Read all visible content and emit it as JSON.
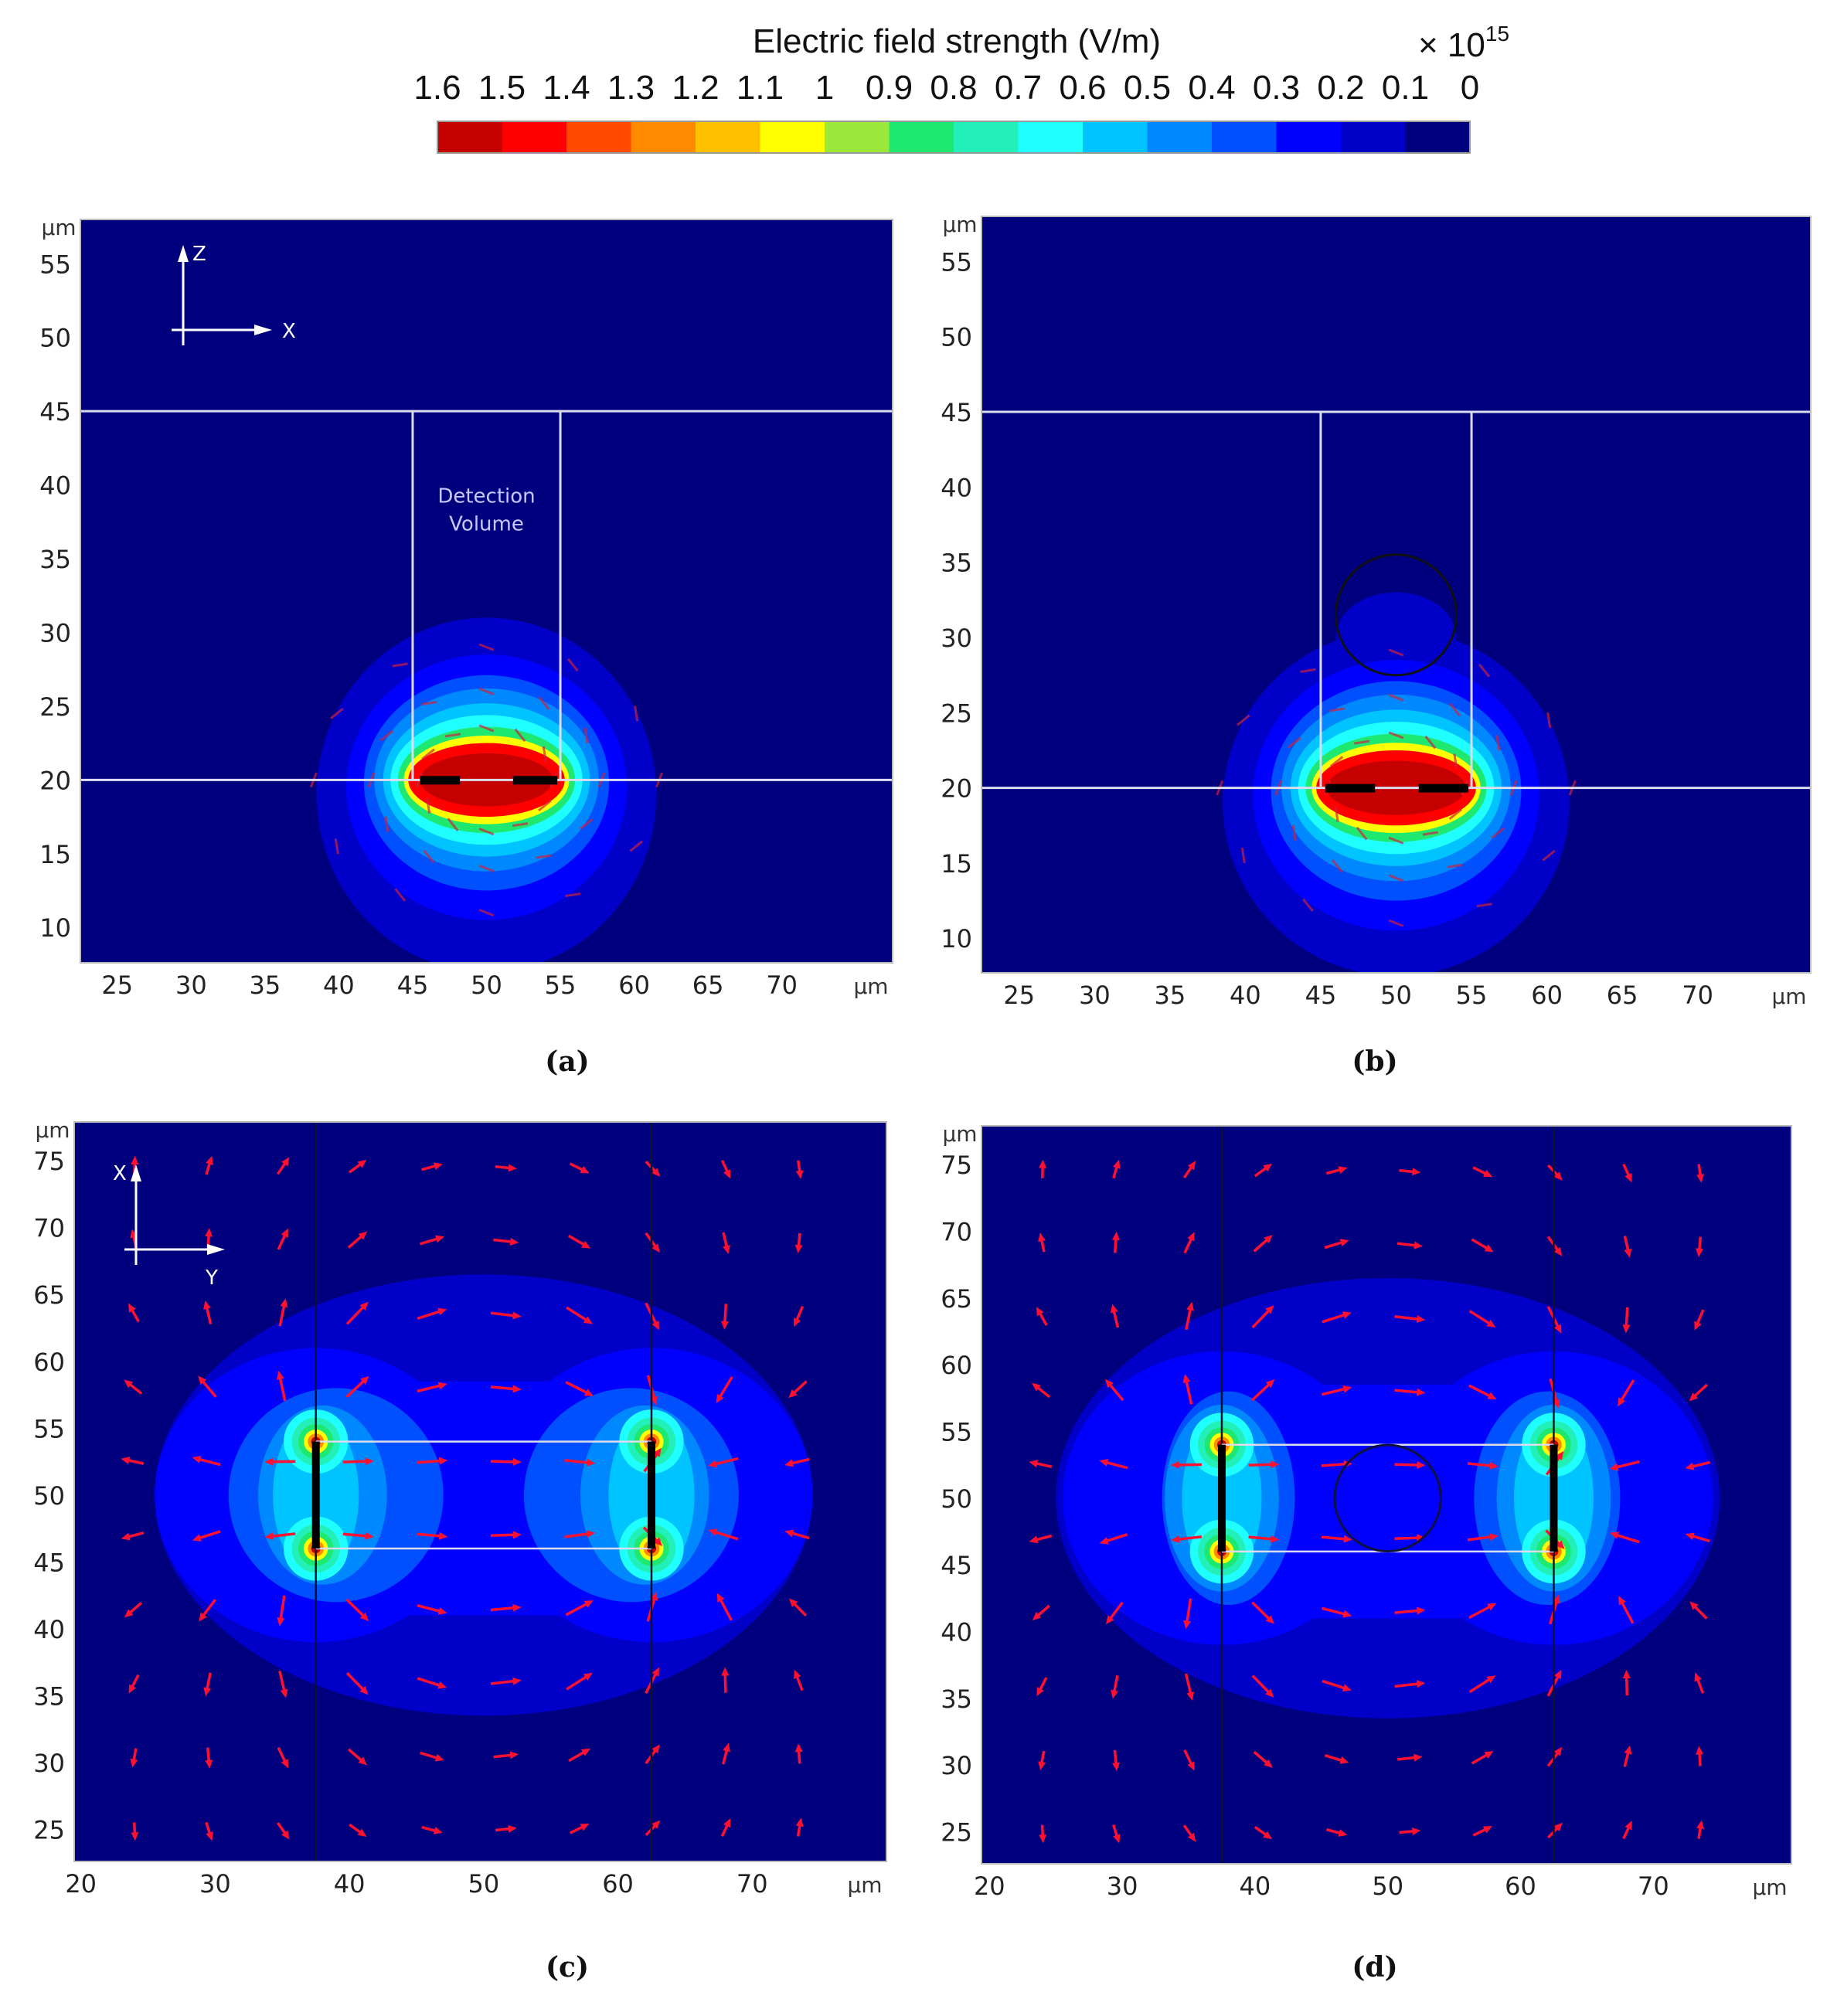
{
  "colorbar": {
    "title": "Electric field strength (V/m)",
    "multiplier": "× 10",
    "exponent": "15",
    "tick_labels": [
      "1.6",
      "1.5",
      "1.4",
      "1.3",
      "1.2",
      "1.1",
      "1",
      "0.9",
      "0.8",
      "0.7",
      "0.6",
      "0.5",
      "0.4",
      "0.3",
      "0.2",
      "0.1",
      "0"
    ],
    "colors": [
      "#c40000",
      "#ff0000",
      "#ff4a00",
      "#ff8a00",
      "#ffc000",
      "#ffff00",
      "#9be83a",
      "#1ee870",
      "#22f0b8",
      "#20ffff",
      "#00c4ff",
      "#0088ff",
      "#0050ff",
      "#0000ff",
      "#0000c8",
      "#00007e"
    ]
  },
  "chart_data": [
    {
      "type": "heatmap",
      "panel": "(a)",
      "xlim": [
        22.5,
        77.5
      ],
      "ylim": [
        7.6,
        58
      ],
      "xticks": [
        25,
        30,
        35,
        40,
        45,
        50,
        55,
        60,
        65,
        70
      ],
      "yticks": [
        10,
        15,
        20,
        25,
        30,
        35,
        40,
        45,
        50,
        55
      ],
      "unit": "µm",
      "axis_h": "X",
      "axis_v": "Z",
      "annotation": [
        "Detection",
        "Volume"
      ],
      "contours": [
        {
          "level": 0.1,
          "shape": "ellipse",
          "cx": 50,
          "cy": 19,
          "rx": 11.5,
          "ry": 12
        },
        {
          "level": 0.2,
          "shape": "ellipse",
          "cx": 50,
          "cy": 19.5,
          "rx": 9.5,
          "ry": 9
        },
        {
          "level": 0.3,
          "shape": "ellipse",
          "cx": 50,
          "cy": 19.8,
          "rx": 8.3,
          "ry": 7.3
        },
        {
          "level": 0.4,
          "shape": "ellipse",
          "cx": 50,
          "cy": 20,
          "rx": 7.6,
          "ry": 6.2
        },
        {
          "level": 0.5,
          "shape": "ellipse",
          "cx": 50,
          "cy": 20,
          "rx": 7,
          "ry": 5.2
        },
        {
          "level": 0.6,
          "shape": "ellipse",
          "cx": 50,
          "cy": 20,
          "rx": 6.5,
          "ry": 4.4
        },
        {
          "level": 0.8,
          "shape": "ellipse",
          "cx": 50,
          "cy": 20,
          "rx": 6,
          "ry": 3.6
        },
        {
          "level": 1.0,
          "shape": "ellipse",
          "cx": 50,
          "cy": 20,
          "rx": 5.6,
          "ry": 3
        },
        {
          "level": 1.4,
          "shape": "ellipse",
          "cx": 50,
          "cy": 20,
          "rx": 5.3,
          "ry": 2.5
        },
        {
          "level": 1.5,
          "shape": "ellipse",
          "cx": 50,
          "cy": 20,
          "rx": 4.5,
          "ry": 1.8
        }
      ]
    },
    {
      "type": "heatmap",
      "panel": "(b)",
      "xlim": [
        22.5,
        77.5
      ],
      "ylim": [
        7.7,
        58
      ],
      "xticks": [
        25,
        30,
        35,
        40,
        45,
        50,
        55,
        60,
        65,
        70
      ],
      "yticks": [
        10,
        15,
        20,
        25,
        30,
        35,
        40,
        45,
        50,
        55
      ],
      "unit": "µm",
      "contours": [
        {
          "level": 0.1,
          "shape": "ellipse",
          "cx": 50,
          "cy": 19,
          "rx": 11.5,
          "ry": 11.5
        },
        {
          "level": 0.1,
          "shape": "ellipse",
          "cx": 50,
          "cy": 30,
          "rx": 4,
          "ry": 3
        },
        {
          "level": 0.2,
          "shape": "ellipse",
          "cx": 50,
          "cy": 19.5,
          "rx": 9.5,
          "ry": 9
        },
        {
          "level": 0.3,
          "shape": "ellipse",
          "cx": 50,
          "cy": 19.8,
          "rx": 8.3,
          "ry": 7.3
        },
        {
          "level": 0.4,
          "shape": "ellipse",
          "cx": 50,
          "cy": 20,
          "rx": 7.6,
          "ry": 6.2
        },
        {
          "level": 0.5,
          "shape": "ellipse",
          "cx": 50,
          "cy": 20,
          "rx": 7,
          "ry": 5.2
        },
        {
          "level": 0.6,
          "shape": "ellipse",
          "cx": 50,
          "cy": 20,
          "rx": 6.5,
          "ry": 4.4
        },
        {
          "level": 0.8,
          "shape": "ellipse",
          "cx": 50,
          "cy": 20,
          "rx": 6,
          "ry": 3.6
        },
        {
          "level": 1.0,
          "shape": "ellipse",
          "cx": 50,
          "cy": 20,
          "rx": 5.6,
          "ry": 3
        },
        {
          "level": 1.4,
          "shape": "ellipse",
          "cx": 50,
          "cy": 20,
          "rx": 5.3,
          "ry": 2.5
        },
        {
          "level": 1.5,
          "shape": "ellipse",
          "cx": 50,
          "cy": 20,
          "rx": 4.6,
          "ry": 1.8
        }
      ]
    },
    {
      "type": "heatmap",
      "panel": "(c)",
      "xlim": [
        19.5,
        80
      ],
      "ylim": [
        22.6,
        77.9
      ],
      "xticks": [
        20,
        30,
        40,
        50,
        60,
        70
      ],
      "yticks": [
        25,
        30,
        35,
        40,
        45,
        50,
        55,
        60,
        65,
        70,
        75
      ],
      "unit": "µm",
      "axis_h": "Y",
      "axis_v": "X",
      "contours": [
        {
          "level": 0.1,
          "shape": "ellipse",
          "cx": 50,
          "cy": 50,
          "rx": 24.5,
          "ry": 16.5
        },
        {
          "level": 0.2,
          "shape": "ellipse",
          "cx": 37.5,
          "cy": 50,
          "rx": 12,
          "ry": 11
        },
        {
          "level": 0.2,
          "shape": "ellipse",
          "cx": 62.5,
          "cy": 50,
          "rx": 12,
          "ry": 11
        },
        {
          "level": 0.2,
          "shape": "rect",
          "x0": 37.5,
          "x1": 62.5,
          "y0": 41,
          "y1": 58.5
        },
        {
          "level": 0.3,
          "shape": "ellipse",
          "cx": 39,
          "cy": 50,
          "rx": 8,
          "ry": 8
        },
        {
          "level": 0.3,
          "shape": "ellipse",
          "cx": 61,
          "cy": 50,
          "rx": 8,
          "ry": 8
        },
        {
          "level": 0.4,
          "shape": "ellipse",
          "cx": 38,
          "cy": 50,
          "rx": 4.8,
          "ry": 6.7
        },
        {
          "level": 0.4,
          "shape": "ellipse",
          "cx": 62,
          "cy": 50,
          "rx": 4.8,
          "ry": 6.7
        },
        {
          "level": 0.5,
          "shape": "ellipse",
          "cx": 37.5,
          "cy": 50,
          "rx": 3.2,
          "ry": 6
        },
        {
          "level": 0.5,
          "shape": "ellipse",
          "cx": 62.5,
          "cy": 50,
          "rx": 3.2,
          "ry": 6
        },
        {
          "level": 0.6,
          "shape": "points",
          "pts": [
            [
              37.5,
              54
            ],
            [
              37.5,
              46
            ],
            [
              62.5,
              54
            ],
            [
              62.5,
              46
            ]
          ],
          "r": 2.4
        },
        {
          "level": 0.7,
          "shape": "points",
          "pts": [
            [
              37.5,
              54
            ],
            [
              37.5,
              46
            ],
            [
              62.5,
              54
            ],
            [
              62.5,
              46
            ]
          ],
          "r": 1.8
        },
        {
          "level": 0.8,
          "shape": "points",
          "pts": [
            [
              37.5,
              54
            ],
            [
              37.5,
              46
            ],
            [
              62.5,
              54
            ],
            [
              62.5,
              46
            ]
          ],
          "r": 1.3
        },
        {
          "level": 1.0,
          "shape": "points",
          "pts": [
            [
              37.5,
              54
            ],
            [
              37.5,
              46
            ],
            [
              62.5,
              54
            ],
            [
              62.5,
              46
            ]
          ],
          "r": 0.9
        },
        {
          "level": 1.2,
          "shape": "points",
          "pts": [
            [
              37.5,
              54
            ],
            [
              37.5,
              46
            ],
            [
              62.5,
              54
            ],
            [
              62.5,
              46
            ]
          ],
          "r": 0.6
        },
        {
          "level": 1.5,
          "shape": "points",
          "pts": [
            [
              37.5,
              54
            ],
            [
              37.5,
              46
            ],
            [
              62.5,
              54
            ],
            [
              62.5,
              46
            ]
          ],
          "r": 0.35
        }
      ]
    },
    {
      "type": "heatmap",
      "panel": "(d)",
      "xlim": [
        19.4,
        80.4
      ],
      "ylim": [
        22.6,
        77.9
      ],
      "xticks": [
        20,
        30,
        40,
        50,
        60,
        70
      ],
      "yticks": [
        25,
        30,
        35,
        40,
        45,
        50,
        55,
        60,
        65,
        70,
        75
      ],
      "unit": "µm",
      "contours": [
        {
          "level": 0.1,
          "shape": "ellipse",
          "cx": 50,
          "cy": 50,
          "rx": 25,
          "ry": 16.5
        },
        {
          "level": 0.2,
          "shape": "ellipse",
          "cx": 37.5,
          "cy": 50,
          "rx": 12,
          "ry": 11
        },
        {
          "level": 0.2,
          "shape": "ellipse",
          "cx": 62.5,
          "cy": 50,
          "rx": 12,
          "ry": 11
        },
        {
          "level": 0.2,
          "shape": "rect",
          "x0": 37.5,
          "x1": 62.5,
          "y0": 41,
          "y1": 58.5
        },
        {
          "level": 0.3,
          "shape": "ellipse",
          "cx": 38,
          "cy": 50,
          "rx": 5,
          "ry": 8
        },
        {
          "level": 0.3,
          "shape": "ellipse",
          "cx": 62,
          "cy": 50,
          "rx": 5.5,
          "ry": 8
        },
        {
          "level": 0.4,
          "shape": "ellipse",
          "cx": 37.5,
          "cy": 50,
          "rx": 4.3,
          "ry": 7
        },
        {
          "level": 0.4,
          "shape": "ellipse",
          "cx": 62.5,
          "cy": 50,
          "rx": 4.3,
          "ry": 7
        },
        {
          "level": 0.5,
          "shape": "ellipse",
          "cx": 37.5,
          "cy": 50,
          "rx": 3,
          "ry": 6
        },
        {
          "level": 0.5,
          "shape": "ellipse",
          "cx": 62.5,
          "cy": 50,
          "rx": 3,
          "ry": 6
        },
        {
          "level": 0.6,
          "shape": "points",
          "pts": [
            [
              37.5,
              54
            ],
            [
              37.5,
              46
            ],
            [
              62.5,
              54
            ],
            [
              62.5,
              46
            ]
          ],
          "r": 2.4
        },
        {
          "level": 0.7,
          "shape": "points",
          "pts": [
            [
              37.5,
              54
            ],
            [
              37.5,
              46
            ],
            [
              62.5,
              54
            ],
            [
              62.5,
              46
            ]
          ],
          "r": 1.8
        },
        {
          "level": 0.8,
          "shape": "points",
          "pts": [
            [
              37.5,
              54
            ],
            [
              37.5,
              46
            ],
            [
              62.5,
              54
            ],
            [
              62.5,
              46
            ]
          ],
          "r": 1.3
        },
        {
          "level": 1.0,
          "shape": "points",
          "pts": [
            [
              37.5,
              54
            ],
            [
              37.5,
              46
            ],
            [
              62.5,
              54
            ],
            [
              62.5,
              46
            ]
          ],
          "r": 0.9
        },
        {
          "level": 1.2,
          "shape": "points",
          "pts": [
            [
              37.5,
              54
            ],
            [
              37.5,
              46
            ],
            [
              62.5,
              54
            ],
            [
              62.5,
              46
            ]
          ],
          "r": 0.6
        },
        {
          "level": 1.5,
          "shape": "points",
          "pts": [
            [
              37.5,
              54
            ],
            [
              37.5,
              46
            ],
            [
              62.5,
              54
            ],
            [
              62.5,
              46
            ]
          ],
          "r": 0.35
        }
      ]
    }
  ]
}
